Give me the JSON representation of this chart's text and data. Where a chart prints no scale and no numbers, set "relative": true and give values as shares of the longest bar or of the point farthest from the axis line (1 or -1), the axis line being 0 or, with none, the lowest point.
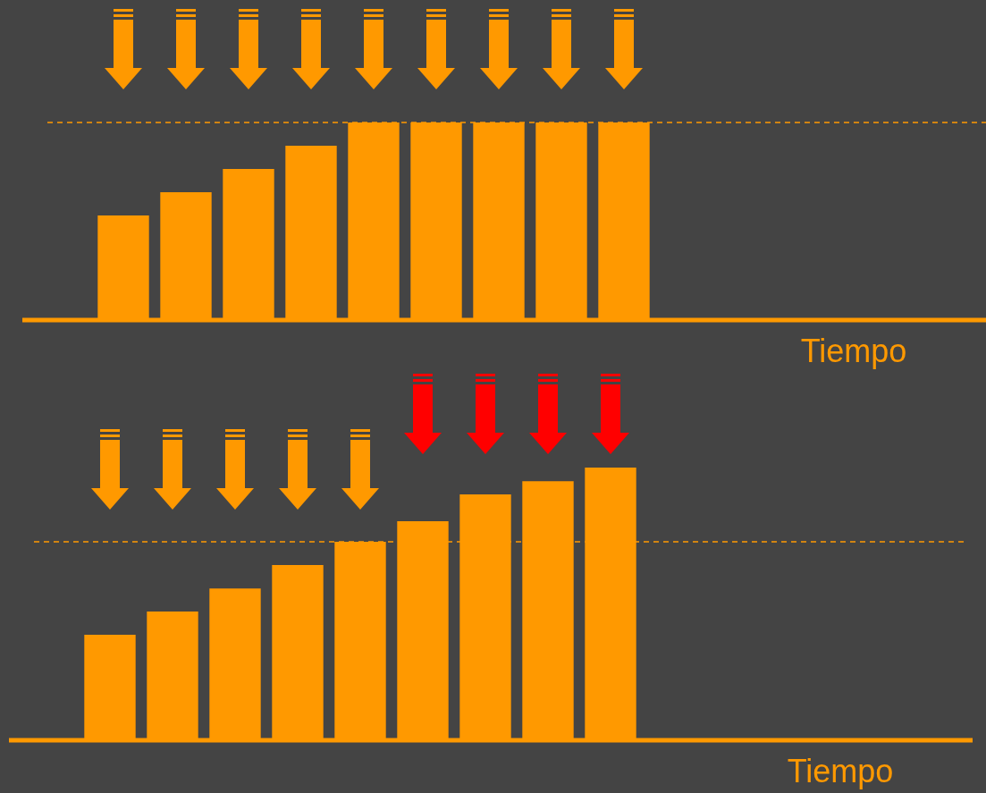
{
  "chart_data": [
    {
      "type": "bar",
      "relative": true,
      "xlabel": "Tiempo",
      "categories": [
        null,
        null,
        null,
        null,
        null,
        null,
        null,
        null,
        null
      ],
      "values": [
        0.525,
        0.644,
        0.763,
        0.881,
        1,
        1,
        1,
        1,
        1
      ],
      "color": "#ff9900",
      "legend": false,
      "ref_lines": [
        {
          "axis": "y",
          "value": 1,
          "color": "#ff9900",
          "line_style": "dashed"
        }
      ]
    },
    {
      "type": "bar",
      "relative": true,
      "xlabel": "Tiempo",
      "categories": [
        null,
        null,
        null,
        null,
        null,
        null,
        null,
        null,
        null
      ],
      "values": [
        0.383,
        0.469,
        0.554,
        0.64,
        0.726,
        0.802,
        0.901,
        0.95,
        1
      ],
      "color": "#ff9900",
      "legend": false,
      "ref_lines": [
        {
          "axis": "y",
          "value": 0.726,
          "color": "#ff9900",
          "line_style": "dashed"
        }
      ]
    }
  ]
}
